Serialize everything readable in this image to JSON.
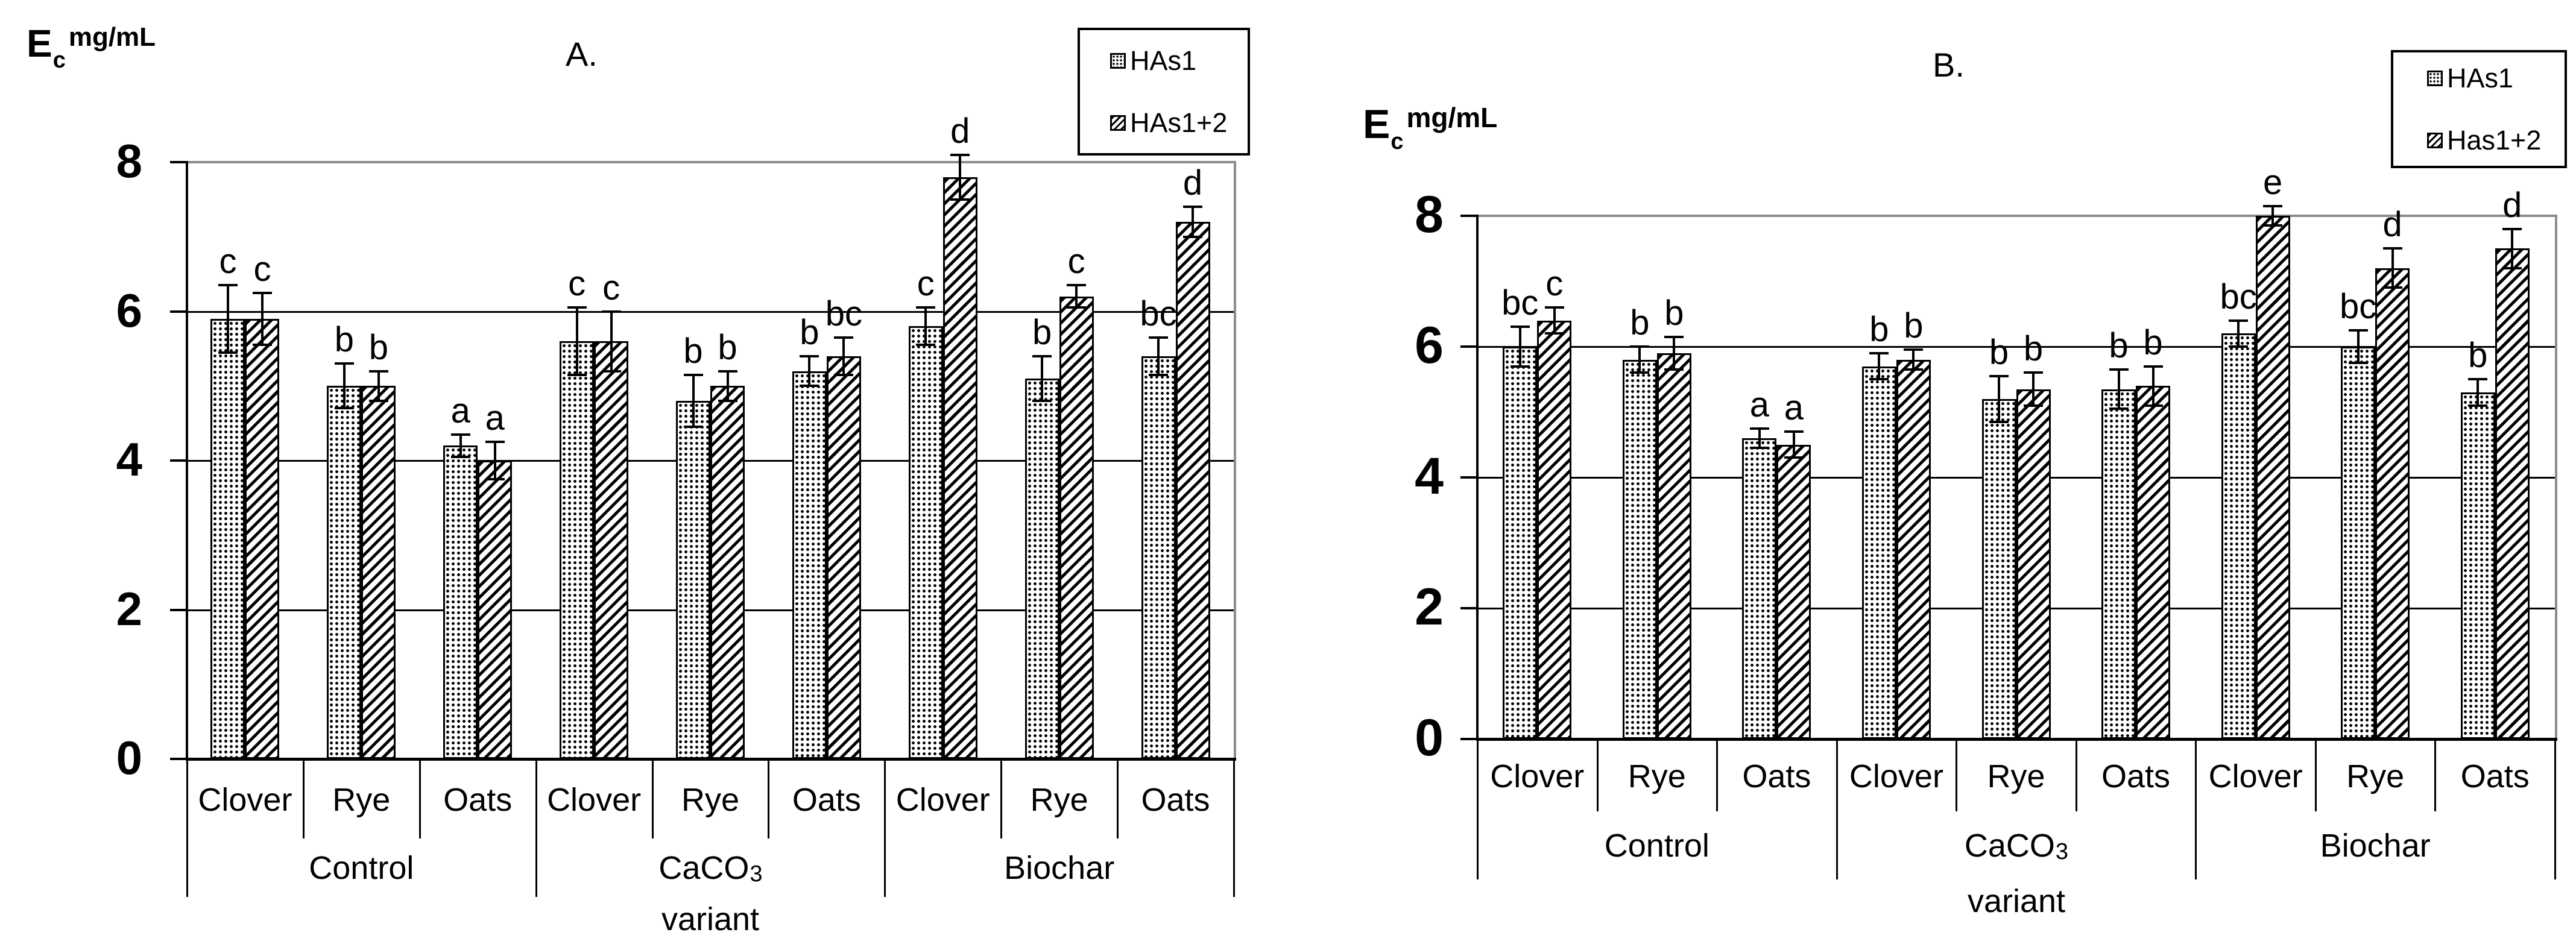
{
  "colors": {
    "ink": "#000000",
    "plot_border_gray": "#8c8c8c",
    "background": "#ffffff"
  },
  "chart_data": [
    {
      "panel_label": "A.",
      "type": "bar",
      "y_axis": {
        "symbol": "E",
        "symbol_sub": "c",
        "unit": "mg/mL"
      },
      "ylim": [
        0,
        8
      ],
      "yticks": [
        0,
        2,
        4,
        6,
        8
      ],
      "grid": true,
      "legend_position": "top-right",
      "groups": [
        "Control",
        "CaCO3",
        "Biochar"
      ],
      "categories": [
        "Clover",
        "Rye",
        "Oats"
      ],
      "group_axis_label": "variant",
      "series": [
        {
          "name": "HAs1",
          "pattern": "dots",
          "values": [
            5.9,
            5.0,
            4.2,
            5.6,
            4.8,
            5.2,
            5.8,
            5.1,
            5.4
          ],
          "errors": [
            0.45,
            0.3,
            0.15,
            0.45,
            0.35,
            0.2,
            0.25,
            0.3,
            0.25
          ],
          "letters": [
            "c",
            "b",
            "a",
            "c",
            "b",
            "b",
            "c",
            "b",
            "bc"
          ]
        },
        {
          "name": "HAs1+2",
          "pattern": "hatch",
          "values": [
            5.9,
            5.0,
            4.0,
            5.6,
            5.0,
            5.4,
            7.8,
            6.2,
            7.2
          ],
          "errors": [
            0.35,
            0.2,
            0.25,
            0.4,
            0.2,
            0.25,
            0.3,
            0.15,
            0.2
          ],
          "letters": [
            "c",
            "b",
            "a",
            "c",
            "b",
            "bc",
            "d",
            "c",
            "d"
          ]
        }
      ]
    },
    {
      "panel_label": "B.",
      "type": "bar",
      "y_axis": {
        "symbol": "E",
        "symbol_sub": "c",
        "unit": "mg/mL"
      },
      "ylim": [
        0,
        8
      ],
      "yticks": [
        0,
        2,
        4,
        6,
        8
      ],
      "grid": true,
      "legend_position": "top-right",
      "groups": [
        "Control",
        "CaCO3",
        "Biochar"
      ],
      "categories": [
        "Clover",
        "Rye",
        "Oats"
      ],
      "group_axis_label": "variant",
      "series": [
        {
          "name": "HAs1",
          "pattern": "dots",
          "values": [
            6.0,
            5.8,
            4.6,
            5.7,
            5.2,
            5.35,
            6.2,
            6.0,
            5.3
          ],
          "errors": [
            0.3,
            0.2,
            0.15,
            0.2,
            0.35,
            0.3,
            0.2,
            0.25,
            0.2
          ],
          "letters": [
            "bc",
            "b",
            "a",
            "b",
            "b",
            "b",
            "bc",
            "bc",
            "b"
          ]
        },
        {
          "name": "Has1+2",
          "pattern": "hatch",
          "values": [
            6.4,
            5.9,
            4.5,
            5.8,
            5.35,
            5.4,
            8.0,
            7.2,
            7.5
          ],
          "errors": [
            0.2,
            0.25,
            0.2,
            0.15,
            0.25,
            0.3,
            0.15,
            0.3,
            0.3
          ],
          "letters": [
            "c",
            "b",
            "a",
            "b",
            "b",
            "b",
            "e",
            "d",
            "d"
          ]
        }
      ]
    }
  ]
}
